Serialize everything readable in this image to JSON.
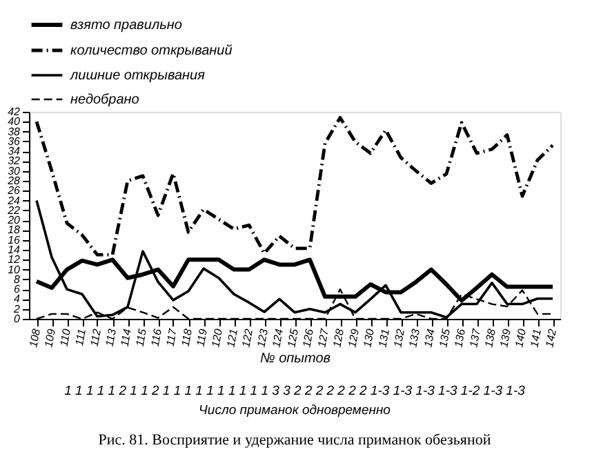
{
  "chart_data": {
    "type": "line",
    "xlabel": "№ опытов",
    "categories": [
      "108",
      "109",
      "110",
      "111",
      "112",
      "113",
      "114",
      "115",
      "116",
      "117",
      "118",
      "119",
      "120",
      "121",
      "122",
      "123",
      "124",
      "125",
      "126",
      "127",
      "128",
      "129",
      "130",
      "131",
      "132",
      "133",
      "134",
      "135",
      "136",
      "137",
      "138",
      "139",
      "140",
      "141",
      "142"
    ],
    "series": [
      {
        "name": "взято правильно",
        "color": "#000000",
        "line_style": "solid",
        "values": [
          7.6,
          6.3,
          10,
          11.8,
          11,
          12,
          8.3,
          9,
          10,
          6.6,
          12,
          12,
          12,
          10,
          10,
          12,
          11,
          11,
          12,
          4.5,
          4.5,
          4.5,
          7,
          5.4,
          5.4,
          7.5,
          10,
          7,
          3.7,
          6.3,
          9,
          6.5,
          6.5,
          6.5,
          6.5
        ]
      },
      {
        "name": "количество открываний",
        "color": "#000000",
        "line_style": "dashdot",
        "values": [
          40,
          30,
          19.4,
          17,
          13,
          13,
          28,
          29,
          21,
          29.5,
          17.6,
          22.2,
          20.2,
          18.2,
          19,
          13.3,
          16.8,
          14.3,
          14.3,
          35.6,
          40.8,
          35.9,
          33.6,
          38.3,
          32.7,
          30,
          27.5,
          29.4,
          39.8,
          33.6,
          34.4,
          37.3,
          24.9,
          32.2,
          35.2
        ]
      },
      {
        "name": "лишние открывания",
        "color": "#000000",
        "line_style": "solid",
        "values": [
          24,
          12.5,
          6,
          5,
          0.5,
          0.8,
          2.4,
          13.7,
          7.5,
          3.8,
          5.6,
          10.2,
          8.3,
          5,
          3.3,
          1.4,
          4,
          1.3,
          2,
          1.3,
          3,
          1.3,
          4,
          6.8,
          1.3,
          1.3,
          1.3,
          0.3,
          3,
          3,
          7.3,
          3,
          3,
          4.1,
          4.1
        ]
      },
      {
        "name": "недобрано",
        "color": "#000000",
        "line_style": "dashed",
        "values": [
          0,
          1,
          1,
          0,
          1.3,
          0,
          2.3,
          1.3,
          0.2,
          2.4,
          0,
          0,
          0,
          0,
          0,
          0,
          0,
          0,
          0,
          0,
          6,
          0,
          0,
          0,
          0,
          1,
          0,
          0,
          5,
          4,
          3,
          2.5,
          5.8,
          1,
          1
        ]
      }
    ],
    "ylim": [
      0,
      42
    ],
    "yticks": [
      0,
      2,
      4,
      6,
      8,
      10,
      12,
      14,
      16,
      18,
      20,
      22,
      24,
      26,
      28,
      30,
      32,
      34,
      36,
      38,
      40,
      42
    ],
    "grid": false,
    "legend": "top",
    "annotations": [
      "1 1 1 1 1 2 1 1 2 1 1 1 1 1 1 1 1 1 1 3 3 2 2 2 2 2 2 2 1-3 1-3 1-3 1-3 1-2 1-3 1-3",
      "Число приманок одновременно",
      "Рис. 81. Восприятие и удержание числа приманок обезьяной"
    ]
  }
}
